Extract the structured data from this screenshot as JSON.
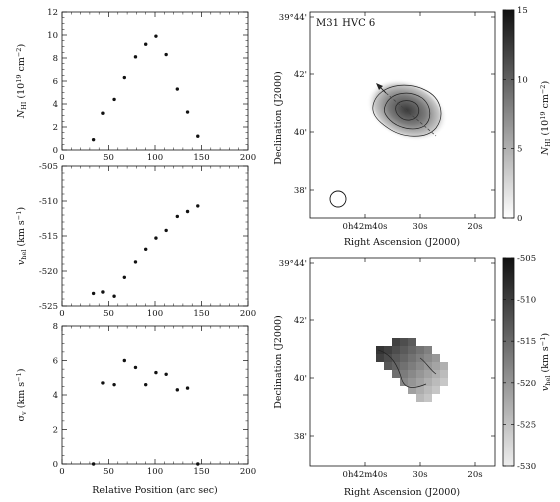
{
  "chart_data": [
    {
      "type": "scatter",
      "panel": "nhi",
      "ylabel": "N_HI (10^19 cm^-2)",
      "xlim": [
        0,
        200
      ],
      "ylim": [
        0,
        12
      ],
      "xticks": [
        "0",
        "50",
        "100",
        "150",
        "200"
      ],
      "yticks": [
        "0",
        "2",
        "4",
        "6",
        "8",
        "10",
        "12"
      ],
      "x": [
        34,
        44,
        56,
        67,
        79,
        90,
        101,
        112,
        124,
        135,
        146
      ],
      "y": [
        0.9,
        3.2,
        4.4,
        6.3,
        8.1,
        9.2,
        9.9,
        8.3,
        5.3,
        3.3,
        1.2
      ]
    },
    {
      "type": "scatter",
      "panel": "vhel",
      "ylabel": "v_hel (km s^-1)",
      "xlim": [
        0,
        200
      ],
      "ylim": [
        -525,
        -505
      ],
      "xticks": [
        "0",
        "50",
        "100",
        "150",
        "200"
      ],
      "yticks": [
        "-525",
        "-520",
        "-515",
        "-510",
        "-505"
      ],
      "x": [
        34,
        44,
        56,
        67,
        79,
        90,
        101,
        112,
        124,
        135,
        146
      ],
      "y": [
        -523.2,
        -523.0,
        -523.6,
        -520.9,
        -518.7,
        -516.9,
        -515.3,
        -514.2,
        -512.2,
        -511.5,
        -510.7
      ]
    },
    {
      "type": "scatter",
      "panel": "sigma",
      "ylabel": "σ_v (km s^-1)",
      "xlabel": "Relative Position (arc sec)",
      "xlim": [
        0,
        200
      ],
      "ylim": [
        0,
        8
      ],
      "xticks": [
        "0",
        "50",
        "100",
        "150",
        "200"
      ],
      "yticks": [
        "0",
        "2",
        "4",
        "6",
        "8"
      ],
      "x": [
        34,
        44,
        56,
        67,
        79,
        90,
        101,
        112,
        124,
        135,
        146
      ],
      "y": [
        0.0,
        4.7,
        4.6,
        6.0,
        5.6,
        4.6,
        5.3,
        5.2,
        4.3,
        4.4,
        0.0
      ]
    },
    {
      "type": "heatmap",
      "panel": "nhi-map",
      "title": "M31 HVC 6",
      "xlabel": "Right Ascension (J2000)",
      "ylabel": "Declination (J2000)",
      "xticks": [
        "0h42m40s",
        "30s",
        "20s"
      ],
      "yticks": [
        "39°44'",
        "42'",
        "40'",
        "38'"
      ],
      "colorbar": {
        "label": "N_HI (10^19 cm^-2)",
        "ticks": [
          "0",
          "5",
          "10",
          "15"
        ],
        "range": [
          0,
          15
        ]
      }
    },
    {
      "type": "heatmap",
      "panel": "vhel-map",
      "xlabel": "Right Ascension (J2000)",
      "ylabel": "Declination (J2000)",
      "xticks": [
        "0h42m40s",
        "30s",
        "20s"
      ],
      "yticks": [
        "39°44'",
        "42'",
        "40'",
        "38'"
      ],
      "colorbar": {
        "label": "v_hel (km s^-1)",
        "ticks": [
          "-505",
          "-510",
          "-515",
          "-520",
          "-525",
          "-530"
        ],
        "range": [
          -530,
          -505
        ]
      }
    }
  ]
}
